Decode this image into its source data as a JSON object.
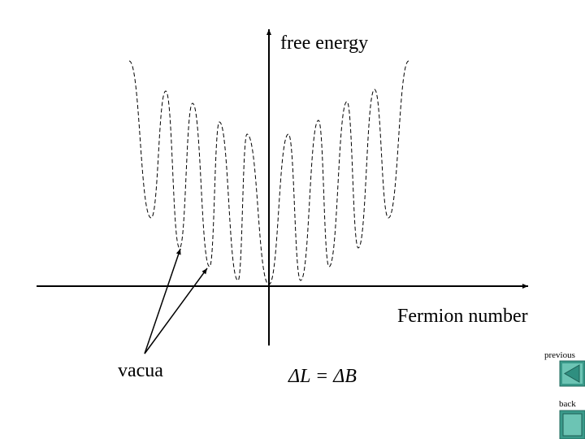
{
  "labels": {
    "y_axis": "free energy",
    "x_axis": "Fermion number",
    "vacua": "vacua",
    "equation": "ΔL = ΔB"
  },
  "navigation": {
    "previous": "previous",
    "back": "back"
  }
}
